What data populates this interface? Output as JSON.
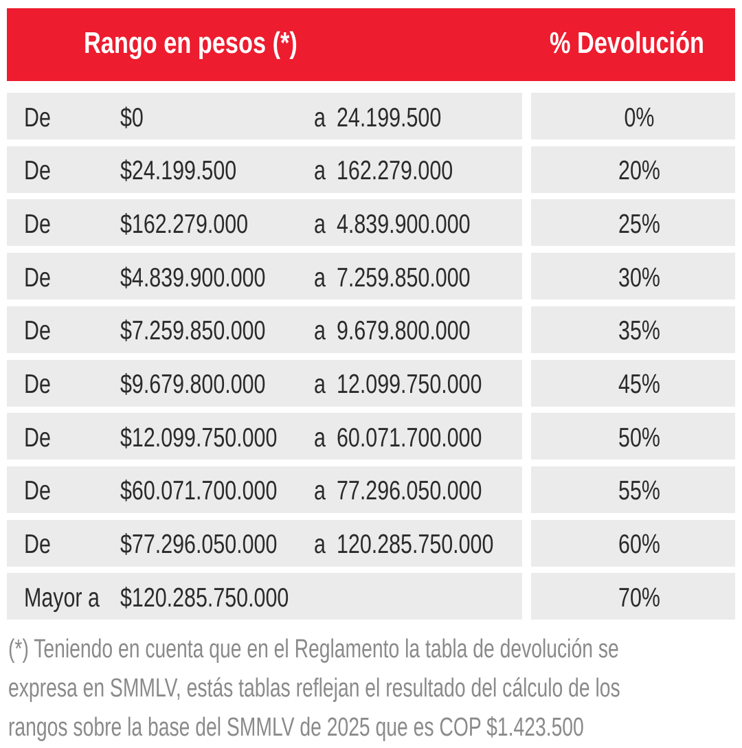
{
  "header": {
    "range": "Rango en pesos (*)",
    "percent": "% Devolución"
  },
  "rows": [
    {
      "prefix": "De",
      "from": "$0",
      "connector": "a",
      "to": "24.199.500",
      "percent": "0%"
    },
    {
      "prefix": "De",
      "from": "$24.199.500",
      "connector": "a",
      "to": "162.279.000",
      "percent": "20%"
    },
    {
      "prefix": "De",
      "from": "$162.279.000",
      "connector": "a",
      "to": "4.839.900.000",
      "percent": "25%"
    },
    {
      "prefix": "De",
      "from": "$4.839.900.000",
      "connector": "a",
      "to": "7.259.850.000",
      "percent": "30%"
    },
    {
      "prefix": "De",
      "from": "$7.259.850.000",
      "connector": "a",
      "to": "9.679.800.000",
      "percent": "35%"
    },
    {
      "prefix": "De",
      "from": "$9.679.800.000",
      "connector": "a",
      "to": "12.099.750.000",
      "percent": "45%"
    },
    {
      "prefix": "De",
      "from": "$12.099.750.000",
      "connector": "a",
      "to": "60.071.700.000",
      "percent": "50%"
    },
    {
      "prefix": "De",
      "from": "$60.071.700.000",
      "connector": "a",
      "to": "77.296.050.000",
      "percent": "55%"
    },
    {
      "prefix": "De",
      "from": "$77.296.050.000",
      "connector": "a",
      "to": "120.285.750.000",
      "percent": "60%"
    },
    {
      "prefix": "Mayor a",
      "from": "$120.285.750.000",
      "percent": "70%"
    }
  ],
  "footnote": [
    "(*) Teniendo en cuenta que en el Reglamento la tabla de devolución se",
    "expresa en SMMLV, estás tablas reflejan el resultado del cálculo de los",
    "rangos sobre la base del SMMLV de 2025 que es COP $1.423.500"
  ]
}
